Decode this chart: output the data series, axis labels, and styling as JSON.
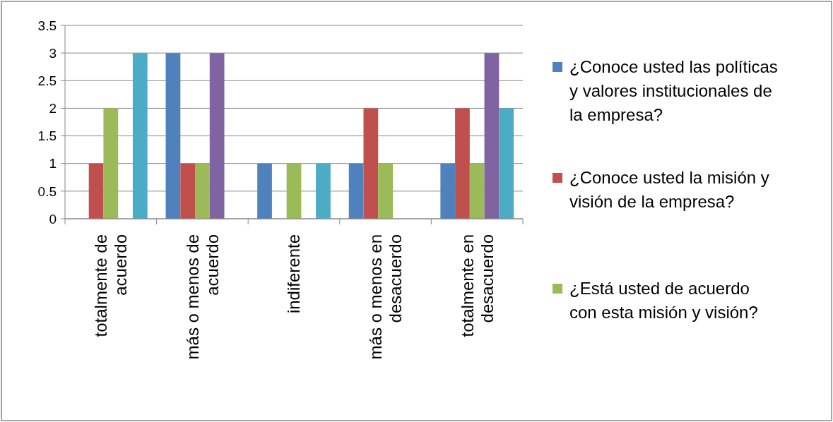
{
  "chart_data": {
    "type": "bar",
    "categories": [
      "totalmente de acuerdo",
      "más o menos de acuerdo",
      "indiferente",
      "más o menos en desacuerdo",
      "totalmente en desacuerdo"
    ],
    "series": [
      {
        "name": "¿Conoce usted las políticas y valores institucionales de la empresa?",
        "color": "#4f81bd",
        "values": [
          0,
          3,
          1,
          1,
          1
        ]
      },
      {
        "name": "¿Conoce usted la misión y visión de la empresa?",
        "color": "#c0504d",
        "values": [
          1,
          1,
          0,
          2,
          2
        ]
      },
      {
        "name": "¿Está usted de acuerdo con esta misión y visión?",
        "color": "#9bbb59",
        "values": [
          2,
          1,
          1,
          1,
          1
        ]
      },
      {
        "color": "#8064a2",
        "values": [
          0,
          3,
          0,
          0,
          3
        ]
      },
      {
        "color": "#4bacc6",
        "values": [
          3,
          0,
          1,
          0,
          2
        ]
      }
    ],
    "ylim": [
      0,
      3.5
    ],
    "yticks": [
      0,
      0.5,
      1,
      1.5,
      2,
      2.5,
      3,
      3.5
    ],
    "grid": "y",
    "legend": "right"
  }
}
